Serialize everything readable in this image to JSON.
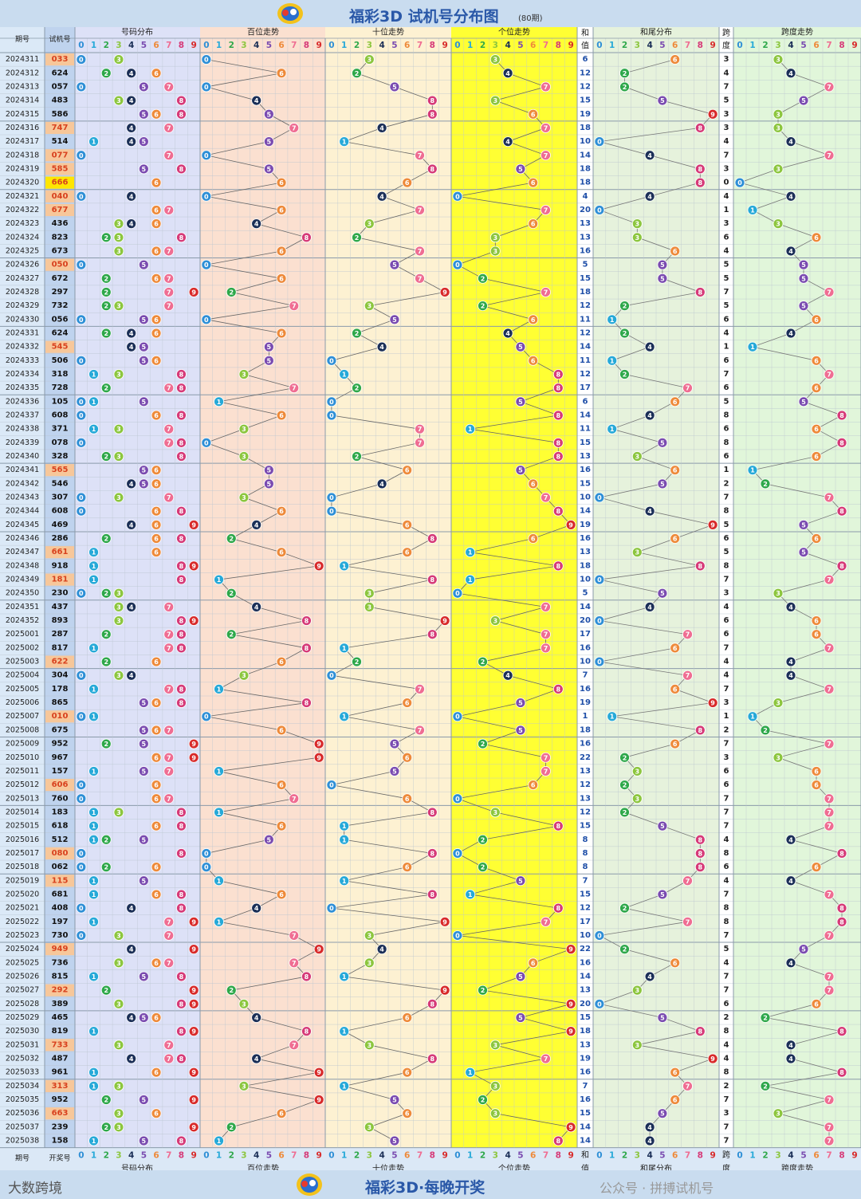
{
  "header": {
    "title": "福彩3D 试机号分布图",
    "subtitle": "(80期)"
  },
  "footer": {
    "slogan": "福彩3D·每晚开奖",
    "brand": "大数跨境",
    "watermark": "公众号 · 拼搏试机号"
  },
  "columns": {
    "issue": "期号",
    "number": "试机号",
    "number_bottom": "开奖号",
    "dist": "号码分布",
    "hundreds": "百位走势",
    "tens": "十位走势",
    "units": "个位走势",
    "sum_top": "和",
    "sum_bottom": "值",
    "sumtail": "和尾分布",
    "span_top": "跨",
    "span_bottom": "度",
    "spantrend": "跨度走势",
    "digits": [
      "0",
      "1",
      "2",
      "3",
      "4",
      "5",
      "6",
      "7",
      "8",
      "9"
    ]
  },
  "colors": {
    "d0": "#2e8fd6",
    "d1": "#26a9d8",
    "d2": "#2ea84a",
    "d3": "#8cc63e",
    "d4": "#1b2f57",
    "d5": "#7a4bb0",
    "d6": "#ee8a3a",
    "d7": "#ef6d92",
    "d8": "#d63a78",
    "d9": "#d82a2a",
    "highlight_orange": "#f7c79a",
    "highlight_yellow": "#ffe600",
    "units_band": "#ffff33",
    "dist_band": "#dde1f7",
    "hundreds_band": "#fbe0d0",
    "tens_band": "#fdf1d2",
    "sumtail_band": "#e6f2dc",
    "span_band": "#e1f6da",
    "issue_band": "#dbe9f7",
    "number_band": "#bfd3ee"
  },
  "chart_data": {
    "type": "table",
    "rows": [
      {
        "issue": "2024311",
        "number": "033",
        "sum": "6",
        "span": "3"
      },
      {
        "issue": "2024312",
        "number": "624",
        "sum": "12",
        "span": "4"
      },
      {
        "issue": "2024313",
        "number": "057",
        "sum": "12",
        "span": "7"
      },
      {
        "issue": "2024314",
        "number": "483",
        "sum": "15",
        "span": "5"
      },
      {
        "issue": "2024315",
        "number": "586",
        "sum": "19",
        "span": "3"
      },
      {
        "issue": "2024316",
        "number": "747",
        "sum": "18",
        "span": "3"
      },
      {
        "issue": "2024317",
        "number": "514",
        "sum": "10",
        "span": "4"
      },
      {
        "issue": "2024318",
        "number": "077",
        "sum": "14",
        "span": "7"
      },
      {
        "issue": "2024319",
        "number": "585",
        "sum": "18",
        "span": "3"
      },
      {
        "issue": "2024320",
        "number": "666",
        "sum": "18",
        "span": "0"
      },
      {
        "issue": "2024321",
        "number": "040",
        "sum": "4",
        "span": "4"
      },
      {
        "issue": "2024322",
        "number": "677",
        "sum": "20",
        "span": "1"
      },
      {
        "issue": "2024323",
        "number": "436",
        "sum": "13",
        "span": "3"
      },
      {
        "issue": "2024324",
        "number": "823",
        "sum": "13",
        "span": "6"
      },
      {
        "issue": "2024325",
        "number": "673",
        "sum": "16",
        "span": "4"
      },
      {
        "issue": "2024326",
        "number": "050",
        "sum": "5",
        "span": "5"
      },
      {
        "issue": "2024327",
        "number": "672",
        "sum": "15",
        "span": "5"
      },
      {
        "issue": "2024328",
        "number": "297",
        "sum": "18",
        "span": "7"
      },
      {
        "issue": "2024329",
        "number": "732",
        "sum": "12",
        "span": "5"
      },
      {
        "issue": "2024330",
        "number": "056",
        "sum": "11",
        "span": "6"
      },
      {
        "issue": "2024331",
        "number": "624",
        "sum": "12",
        "span": "4"
      },
      {
        "issue": "2024332",
        "number": "545",
        "sum": "14",
        "span": "1"
      },
      {
        "issue": "2024333",
        "number": "506",
        "sum": "11",
        "span": "6"
      },
      {
        "issue": "2024334",
        "number": "318",
        "sum": "12",
        "span": "7"
      },
      {
        "issue": "2024335",
        "number": "728",
        "sum": "17",
        "span": "6"
      },
      {
        "issue": "2024336",
        "number": "105",
        "sum": "6",
        "span": "5"
      },
      {
        "issue": "2024337",
        "number": "608",
        "sum": "14",
        "span": "8"
      },
      {
        "issue": "2024338",
        "number": "371",
        "sum": "11",
        "span": "6"
      },
      {
        "issue": "2024339",
        "number": "078",
        "sum": "15",
        "span": "8"
      },
      {
        "issue": "2024340",
        "number": "328",
        "sum": "13",
        "span": "6"
      },
      {
        "issue": "2024341",
        "number": "565",
        "sum": "16",
        "span": "1"
      },
      {
        "issue": "2024342",
        "number": "546",
        "sum": "15",
        "span": "2"
      },
      {
        "issue": "2024343",
        "number": "307",
        "sum": "10",
        "span": "7"
      },
      {
        "issue": "2024344",
        "number": "608",
        "sum": "14",
        "span": "8"
      },
      {
        "issue": "2024345",
        "number": "469",
        "sum": "19",
        "span": "5"
      },
      {
        "issue": "2024346",
        "number": "286",
        "sum": "16",
        "span": "6"
      },
      {
        "issue": "2024347",
        "number": "661",
        "sum": "13",
        "span": "5"
      },
      {
        "issue": "2024348",
        "number": "918",
        "sum": "18",
        "span": "8"
      },
      {
        "issue": "2024349",
        "number": "181",
        "sum": "10",
        "span": "7"
      },
      {
        "issue": "2024350",
        "number": "230",
        "sum": "5",
        "span": "3"
      },
      {
        "issue": "2024351",
        "number": "437",
        "sum": "14",
        "span": "4"
      },
      {
        "issue": "2024352",
        "number": "893",
        "sum": "20",
        "span": "6"
      },
      {
        "issue": "2025001",
        "number": "287",
        "sum": "17",
        "span": "6"
      },
      {
        "issue": "2025002",
        "number": "817",
        "sum": "16",
        "span": "7"
      },
      {
        "issue": "2025003",
        "number": "622",
        "sum": "10",
        "span": "4"
      },
      {
        "issue": "2025004",
        "number": "304",
        "sum": "7",
        "span": "4"
      },
      {
        "issue": "2025005",
        "number": "178",
        "sum": "16",
        "span": "7"
      },
      {
        "issue": "2025006",
        "number": "865",
        "sum": "19",
        "span": "3"
      },
      {
        "issue": "2025007",
        "number": "010",
        "sum": "1",
        "span": "1"
      },
      {
        "issue": "2025008",
        "number": "675",
        "sum": "18",
        "span": "2"
      },
      {
        "issue": "2025009",
        "number": "952",
        "sum": "16",
        "span": "7"
      },
      {
        "issue": "2025010",
        "number": "967",
        "sum": "22",
        "span": "3"
      },
      {
        "issue": "2025011",
        "number": "157",
        "sum": "13",
        "span": "6"
      },
      {
        "issue": "2025012",
        "number": "606",
        "sum": "12",
        "span": "6"
      },
      {
        "issue": "2025013",
        "number": "760",
        "sum": "13",
        "span": "7"
      },
      {
        "issue": "2025014",
        "number": "183",
        "sum": "12",
        "span": "7"
      },
      {
        "issue": "2025015",
        "number": "618",
        "sum": "15",
        "span": "7"
      },
      {
        "issue": "2025016",
        "number": "512",
        "sum": "8",
        "span": "4"
      },
      {
        "issue": "2025017",
        "number": "080",
        "sum": "8",
        "span": "8"
      },
      {
        "issue": "2025018",
        "number": "062",
        "sum": "8",
        "span": "6"
      },
      {
        "issue": "2025019",
        "number": "115",
        "sum": "7",
        "span": "4"
      },
      {
        "issue": "2025020",
        "number": "681",
        "sum": "15",
        "span": "7"
      },
      {
        "issue": "2025021",
        "number": "408",
        "sum": "12",
        "span": "8"
      },
      {
        "issue": "2025022",
        "number": "197",
        "sum": "17",
        "span": "8"
      },
      {
        "issue": "2025023",
        "number": "730",
        "sum": "10",
        "span": "7"
      },
      {
        "issue": "2025024",
        "number": "949",
        "sum": "22",
        "span": "5"
      },
      {
        "issue": "2025025",
        "number": "736",
        "sum": "16",
        "span": "4"
      },
      {
        "issue": "2025026",
        "number": "815",
        "sum": "14",
        "span": "7"
      },
      {
        "issue": "2025027",
        "number": "292",
        "sum": "13",
        "span": "7"
      },
      {
        "issue": "2025028",
        "number": "389",
        "sum": "20",
        "span": "6"
      },
      {
        "issue": "2025029",
        "number": "465",
        "sum": "15",
        "span": "2"
      },
      {
        "issue": "2025030",
        "number": "819",
        "sum": "18",
        "span": "8"
      },
      {
        "issue": "2025031",
        "number": "733",
        "sum": "13",
        "span": "4"
      },
      {
        "issue": "2025032",
        "number": "487",
        "sum": "19",
        "span": "4"
      },
      {
        "issue": "2025033",
        "number": "961",
        "sum": "16",
        "span": "8"
      },
      {
        "issue": "2025034",
        "number": "313",
        "sum": "7",
        "span": "2"
      },
      {
        "issue": "2025035",
        "number": "952",
        "sum": "16",
        "span": "7"
      },
      {
        "issue": "2025036",
        "number": "663",
        "sum": "15",
        "span": "3"
      },
      {
        "issue": "2025037",
        "number": "239",
        "sum": "14",
        "span": "7"
      },
      {
        "issue": "2025038",
        "number": "158",
        "sum": "14",
        "span": "7"
      }
    ]
  }
}
